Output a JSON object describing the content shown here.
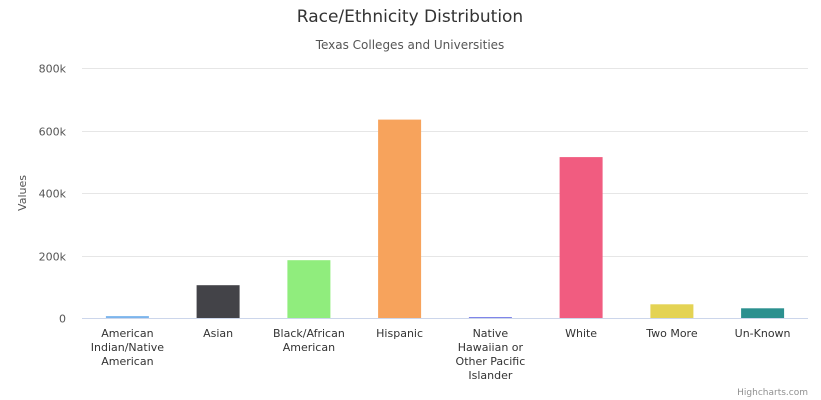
{
  "chart_data": {
    "type": "bar",
    "title": "Race/Ethnicity Distribution",
    "subtitle": "Texas Colleges and Universities",
    "xlabel": "",
    "ylabel": "Values",
    "ylim": [
      0,
      800000
    ],
    "yticks": [
      0,
      200000,
      400000,
      600000,
      800000
    ],
    "ytick_labels": [
      "0",
      "200k",
      "400k",
      "600k",
      "800k"
    ],
    "grid": true,
    "legend": "none",
    "categories": [
      "American Indian/Native American",
      "Asian",
      "Black/African American",
      "Hispanic",
      "Native Hawaiian or Other Pacific Islander",
      "White",
      "Two More",
      "Un-Known"
    ],
    "category_lines": [
      [
        "American",
        "Indian/Native",
        "American"
      ],
      [
        "Asian"
      ],
      [
        "Black/African",
        "American"
      ],
      [
        "Hispanic"
      ],
      [
        "Native",
        "Hawaiian or",
        "Other Pacific",
        "Islander"
      ],
      [
        "White"
      ],
      [
        "Two More"
      ],
      [
        "Un-Known"
      ]
    ],
    "values": [
      6000,
      105000,
      185000,
      635000,
      3000,
      515000,
      44000,
      31000
    ],
    "colors": [
      "#7cb5ec",
      "#434348",
      "#90ed7d",
      "#f7a35c",
      "#8085e9",
      "#f15c80",
      "#e4d354",
      "#2b908f"
    ]
  },
  "credits": "Highcharts.com"
}
